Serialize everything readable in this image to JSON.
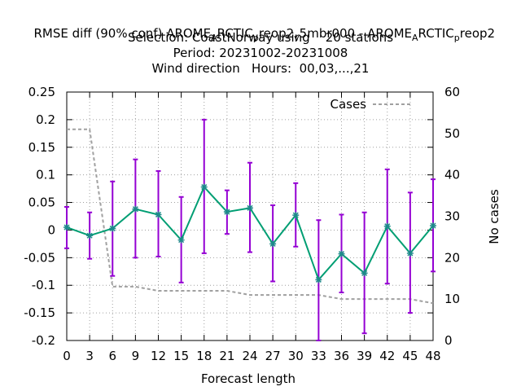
{
  "chart_data": {
    "type": "line",
    "title_lines": [
      "RMSE diff (90% conf) AROME_ARCTIC_preop2_v5mbr000 - AROME_ARCTIC_preop2",
      "Selection: CoastNorway using    20 stations",
      "Period: 20231002-20231008",
      "Wind direction   Hours:  00,03,...,21"
    ],
    "xlabel": "Forecast length",
    "ylabel": "",
    "y2label": "No cases",
    "x": [
      0,
      3,
      6,
      9,
      12,
      15,
      18,
      21,
      24,
      27,
      30,
      33,
      36,
      39,
      42,
      45,
      48
    ],
    "xlim": [
      0,
      48
    ],
    "ylim": [
      -0.2,
      0.25
    ],
    "y2lim": [
      0,
      60
    ],
    "x_ticks": [
      "0",
      "3",
      "6",
      "9",
      "12",
      "15",
      "18",
      "21",
      "24",
      "27",
      "30",
      "33",
      "36",
      "39",
      "42",
      "45",
      "48"
    ],
    "y_ticks": [
      "0.25",
      "0.2",
      "0.15",
      "0.1",
      "0.05",
      "0",
      "-0.05",
      "-0.1",
      "-0.15",
      "-0.2"
    ],
    "y2_ticks": [
      "60",
      "50",
      "40",
      "30",
      "20",
      "10",
      "0"
    ],
    "grid": true,
    "legend_position": "top-right",
    "series": [
      {
        "name": "",
        "color": "#009e73",
        "marker_color": "#1e8a8a",
        "errorbar_color": "#9400d3",
        "values": [
          0.005,
          -0.01,
          0.003,
          0.038,
          0.028,
          -0.018,
          0.078,
          0.033,
          0.04,
          -0.025,
          0.027,
          -0.09,
          -0.043,
          -0.078,
          0.007,
          -0.042,
          0.008
        ],
        "lower": [
          -0.033,
          -0.052,
          -0.083,
          -0.05,
          -0.048,
          -0.095,
          -0.042,
          -0.007,
          -0.04,
          -0.093,
          -0.03,
          -0.2,
          -0.113,
          -0.187,
          -0.097,
          -0.15,
          -0.075
        ],
        "upper": [
          0.042,
          0.032,
          0.088,
          0.128,
          0.107,
          0.06,
          0.2,
          0.072,
          0.122,
          0.045,
          0.085,
          0.018,
          0.028,
          0.032,
          0.11,
          0.068,
          0.092
        ]
      }
    ],
    "cases": {
      "name": "Cases",
      "color": "#a0a0a0",
      "axis": "y2",
      "values": [
        51,
        51,
        13,
        13,
        12,
        12,
        12,
        12,
        11,
        11,
        11,
        11,
        10,
        10,
        10,
        10,
        9
      ]
    }
  }
}
